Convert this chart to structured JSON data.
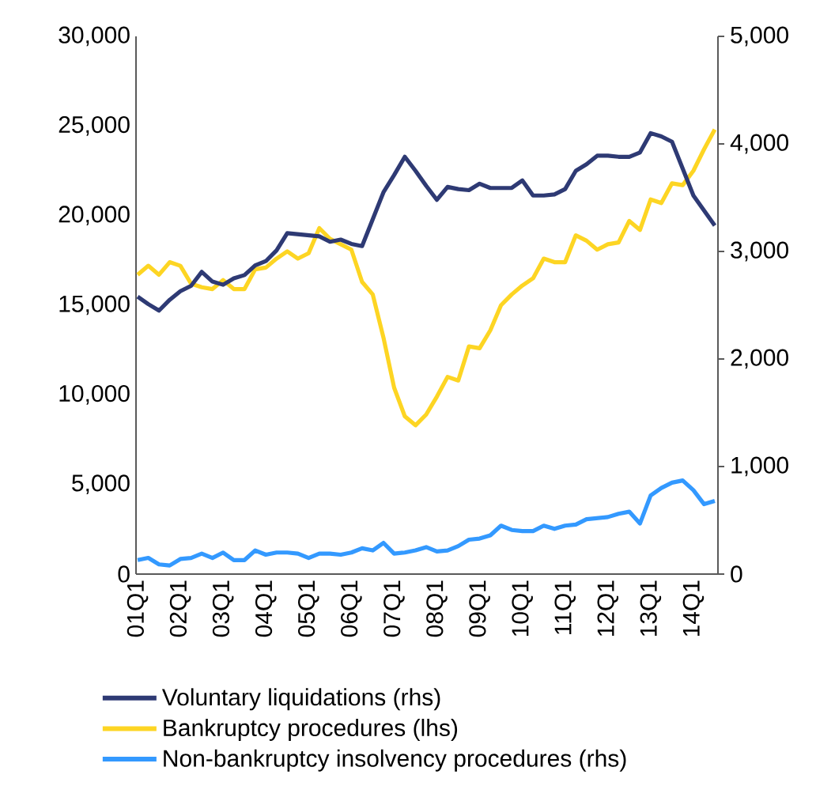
{
  "chart_data": {
    "type": "line",
    "categories": [
      "01Q1",
      null,
      null,
      null,
      "02Q1",
      null,
      null,
      null,
      "03Q1",
      null,
      null,
      null,
      "04Q1",
      null,
      null,
      null,
      "05Q1",
      null,
      null,
      null,
      "06Q1",
      null,
      null,
      null,
      "07Q1",
      null,
      null,
      null,
      "08Q1",
      null,
      null,
      null,
      "09Q1",
      null,
      null,
      null,
      "10Q1",
      null,
      null,
      null,
      "11Q1",
      null,
      null,
      null,
      "12Q1",
      null,
      null,
      null,
      "13Q1",
      null,
      null,
      null,
      "14Q1",
      null,
      null
    ],
    "series": [
      {
        "name": "Voluntary liquidations (rhs)",
        "color": "#2e3a74",
        "axis": "y2",
        "values": [
          2580,
          2510,
          2450,
          2550,
          2630,
          2680,
          2810,
          2720,
          2690,
          2750,
          2780,
          2870,
          2910,
          3010,
          3170,
          3160,
          3150,
          3140,
          3090,
          3110,
          3070,
          3050,
          3300,
          3550,
          3710,
          3880,
          3750,
          3610,
          3480,
          3600,
          3580,
          3570,
          3630,
          3590,
          3590,
          3590,
          3660,
          3520,
          3520,
          3530,
          3580,
          3750,
          3810,
          3890,
          3890,
          3880,
          3880,
          3920,
          4100,
          4070,
          4020,
          3770,
          3520,
          3380,
          3240
        ]
      },
      {
        "name": "Bankruptcy procedures (lhs)",
        "color": "#fdd523",
        "values": [
          16700,
          17200,
          16700,
          17400,
          17200,
          16200,
          16000,
          15900,
          16400,
          15900,
          15900,
          17000,
          17100,
          17600,
          18000,
          17600,
          17900,
          19300,
          18700,
          18400,
          18100,
          16300,
          15600,
          13200,
          10400,
          8800,
          8300,
          8900,
          9900,
          11000,
          10800,
          12700,
          12600,
          13600,
          15000,
          15600,
          16100,
          16500,
          17600,
          17400,
          17400,
          18900,
          18600,
          18100,
          18400,
          18500,
          19700,
          19200,
          20900,
          20700,
          21800,
          21700,
          22500,
          23700,
          24800
        ]
      },
      {
        "name": "Non-bankruptcy insolvency procedures (rhs)",
        "color": "#3399ff",
        "axis": "y2",
        "values": [
          130,
          150,
          90,
          80,
          140,
          150,
          190,
          150,
          200,
          130,
          130,
          220,
          180,
          200,
          200,
          190,
          150,
          190,
          190,
          180,
          200,
          240,
          220,
          290,
          190,
          200,
          220,
          250,
          210,
          220,
          260,
          320,
          330,
          360,
          450,
          410,
          400,
          400,
          450,
          420,
          450,
          460,
          510,
          520,
          530,
          560,
          580,
          470,
          730,
          800,
          850,
          870,
          780,
          650,
          680
        ]
      }
    ],
    "ylim": [
      0,
      30000
    ],
    "yticks": [
      0,
      {
        "value": 5000,
        "label": "5,000"
      },
      {
        "value": 10000,
        "label": "10,000"
      },
      {
        "value": 15000,
        "label": "15,000"
      },
      {
        "value": 20000,
        "label": "20,000"
      },
      {
        "value": 25000,
        "label": "25,000"
      },
      {
        "value": 30000,
        "label": "30,000"
      }
    ],
    "y2lim": [
      0,
      5000
    ],
    "y2ticks": [
      0,
      {
        "value": 1000,
        "label": "1,000"
      },
      {
        "value": 2000,
        "label": "2,000"
      },
      {
        "value": 3000,
        "label": "3,000"
      },
      {
        "value": 4000,
        "label": "4,000"
      },
      {
        "value": 5000,
        "label": "5,000"
      }
    ],
    "grid": false,
    "legend": "bottom",
    "marker": "none",
    "line_style": "solid"
  }
}
